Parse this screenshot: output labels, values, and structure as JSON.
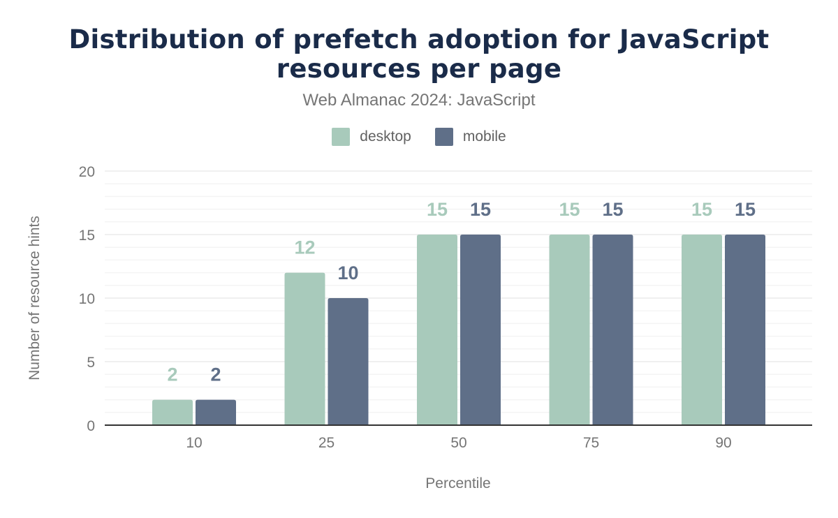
{
  "chart_data": {
    "type": "bar",
    "title": "Distribution of prefetch adoption for JavaScript resources per page",
    "subtitle": "Web Almanac 2024: JavaScript",
    "xlabel": "Percentile",
    "ylabel": "Number of resource hints",
    "categories": [
      "10",
      "25",
      "50",
      "75",
      "90"
    ],
    "series": [
      {
        "name": "desktop",
        "color": "#a8cabb",
        "values": [
          2,
          12,
          15,
          15,
          15
        ]
      },
      {
        "name": "mobile",
        "color": "#5f6f88",
        "values": [
          2,
          10,
          15,
          15,
          15
        ]
      }
    ],
    "ylim": [
      0,
      20
    ],
    "yticks": [
      "0",
      "5",
      "10",
      "15",
      "20"
    ],
    "grid": true,
    "legend": "top-center",
    "data_labels": true
  }
}
